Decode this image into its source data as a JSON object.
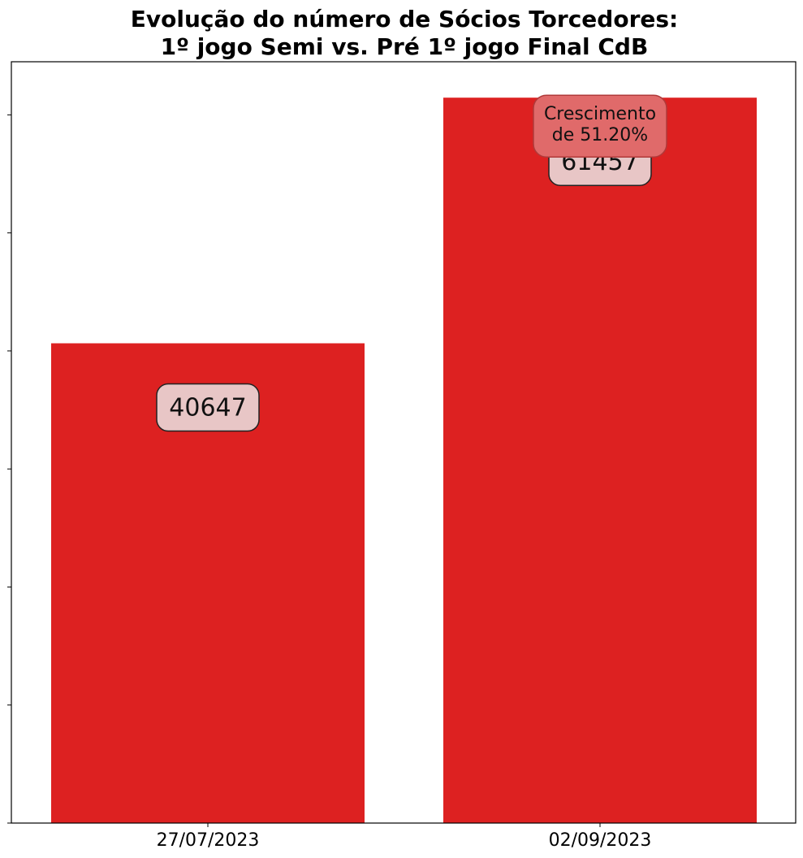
{
  "chart_data": {
    "type": "bar",
    "title_lines": [
      "Evolução do número de Sócios Torcedores:",
      "1º jogo Semi vs. Pré 1º jogo Final CdB"
    ],
    "categories": [
      "27/07/2023",
      "02/09/2023"
    ],
    "values": [
      40647,
      61457
    ],
    "value_labels": [
      "40647",
      "61457"
    ],
    "annotation_lines": [
      "Crescimento",
      "de 51.20%"
    ],
    "annotation_bar_index": 1,
    "xlabel": "",
    "ylabel": "",
    "ylim": [
      0,
      64500
    ],
    "y_tick_values": [
      0,
      10000,
      20000,
      30000,
      40000,
      50000,
      60000
    ],
    "y_tick_labels_visible": false,
    "grid": false,
    "colors": {
      "bar": "#dd2121",
      "value_box_fill": "#e8c6c6",
      "value_box_stroke": "#222222",
      "annotation_fill": "#e06a6a",
      "annotation_stroke": "#b03a3a",
      "axes": "#000000"
    }
  }
}
